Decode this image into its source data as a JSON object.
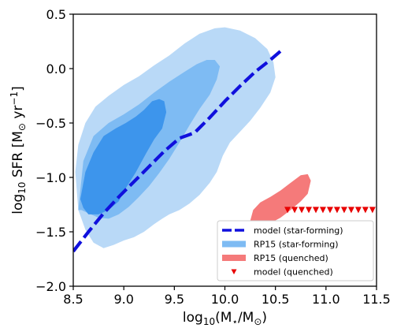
{
  "chart_data": {
    "type": "line",
    "xlabel": "log$_{10}$(M$_\\star$/M$_\\odot$)",
    "ylabel": "log$_{10}$ SFR [M$_\\odot$ yr$^{-1}$]",
    "xlim": [
      8.5,
      11.5
    ],
    "ylim": [
      -2.0,
      0.5
    ],
    "x_ticks": [
      "8.5",
      "9.0",
      "9.5",
      "10.0",
      "10.5",
      "11.0",
      "11.5"
    ],
    "y_ticks": [
      "0.5",
      "0.0",
      "−0.5",
      "−1.0",
      "−1.5",
      "−2.0"
    ],
    "grid": false,
    "legend_position": "lower-right",
    "colors": {
      "model_star_forming": "#1010dd",
      "rp15_outer": "#b9d9f7",
      "rp15_middle": "#7ebbf3",
      "rp15_inner": "#3d95ec",
      "rp15_quenched": "#f57a7a",
      "model_quenched": "#e80000"
    },
    "series": [
      {
        "name": "model (star-forming)",
        "style": "dashed-line",
        "x": [
          8.5,
          8.65,
          8.8,
          8.95,
          9.1,
          9.25,
          9.4,
          9.55,
          9.7,
          9.85,
          10.0,
          10.15,
          10.3,
          10.45,
          10.55
        ],
        "y": [
          -1.68,
          -1.5,
          -1.33,
          -1.18,
          -1.04,
          -0.9,
          -0.76,
          -0.64,
          -0.59,
          -0.45,
          -0.3,
          -0.16,
          -0.03,
          0.08,
          0.16
        ]
      },
      {
        "name": "RP15 (star-forming)",
        "style": "filled-contours",
        "levels": [
          {
            "level": "outer",
            "x": [
              8.52,
              8.55,
              8.62,
              8.72,
              8.85,
              9.0,
              9.15,
              9.3,
              9.45,
              9.6,
              9.75,
              9.9,
              10.0,
              10.15,
              10.3,
              10.42,
              10.48,
              10.5,
              10.45,
              10.35,
              10.25,
              10.15,
              10.05,
              9.98,
              9.92,
              9.85,
              9.75,
              9.65,
              9.55,
              9.45,
              9.38,
              9.3,
              9.2,
              9.1,
              9.0,
              8.9,
              8.8,
              8.7,
              8.62,
              8.55,
              8.52
            ],
            "y": [
              -0.95,
              -0.7,
              -0.5,
              -0.35,
              -0.25,
              -0.15,
              -0.07,
              0.03,
              0.12,
              0.23,
              0.32,
              0.37,
              0.38,
              0.35,
              0.28,
              0.18,
              0.06,
              -0.08,
              -0.22,
              -0.36,
              -0.48,
              -0.58,
              -0.68,
              -0.8,
              -0.95,
              -1.05,
              -1.16,
              -1.24,
              -1.3,
              -1.34,
              -1.38,
              -1.43,
              -1.5,
              -1.55,
              -1.58,
              -1.62,
              -1.65,
              -1.6,
              -1.48,
              -1.3,
              -0.95
            ]
          },
          {
            "level": "middle",
            "x": [
              8.55,
              8.6,
              8.7,
              8.85,
              9.0,
              9.15,
              9.3,
              9.45,
              9.6,
              9.72,
              9.82,
              9.9,
              9.95,
              9.92,
              9.85,
              9.75,
              9.65,
              9.55,
              9.45,
              9.35,
              9.25,
              9.15,
              9.05,
              8.95,
              8.85,
              8.75,
              8.65,
              8.58,
              8.55
            ],
            "y": [
              -1.3,
              -0.85,
              -0.62,
              -0.5,
              -0.42,
              -0.33,
              -0.22,
              -0.12,
              -0.03,
              0.04,
              0.08,
              0.08,
              0.02,
              -0.1,
              -0.24,
              -0.37,
              -0.52,
              -0.68,
              -0.83,
              -0.96,
              -1.08,
              -1.18,
              -1.27,
              -1.34,
              -1.38,
              -1.37,
              -1.33,
              -1.3,
              -1.3
            ]
          },
          {
            "level": "inner",
            "x": [
              8.57,
              8.62,
              8.7,
              8.8,
              8.92,
              9.02,
              9.12,
              9.2,
              9.28,
              9.35,
              9.4,
              9.42,
              9.38,
              9.3,
              9.22,
              9.12,
              9.02,
              8.95,
              8.85,
              8.75,
              8.65,
              8.6,
              8.57
            ],
            "y": [
              -1.2,
              -0.95,
              -0.77,
              -0.62,
              -0.55,
              -0.5,
              -0.44,
              -0.38,
              -0.3,
              -0.28,
              -0.3,
              -0.4,
              -0.55,
              -0.65,
              -0.78,
              -0.95,
              -1.1,
              -1.22,
              -1.3,
              -1.34,
              -1.34,
              -1.28,
              -1.2
            ]
          }
        ]
      },
      {
        "name": "RP15 (quenched)",
        "style": "filled-region",
        "x": [
          10.25,
          10.28,
          10.35,
          10.45,
          10.55,
          10.65,
          10.75,
          10.82,
          10.85,
          10.82,
          10.75,
          10.65,
          10.55,
          10.45,
          10.38,
          10.3,
          10.25
        ],
        "y": [
          -1.4,
          -1.3,
          -1.23,
          -1.18,
          -1.12,
          -1.05,
          -0.98,
          -0.97,
          -1.03,
          -1.15,
          -1.22,
          -1.3,
          -1.37,
          -1.42,
          -1.45,
          -1.45,
          -1.4
        ]
      },
      {
        "name": "model (quenched)",
        "style": "triangle-markers",
        "x": [
          10.62,
          10.69,
          10.76,
          10.83,
          10.9,
          10.97,
          11.04,
          11.11,
          11.18,
          11.25,
          11.32,
          11.39,
          11.46
        ],
        "y": [
          -1.3,
          -1.3,
          -1.3,
          -1.3,
          -1.3,
          -1.3,
          -1.3,
          -1.3,
          -1.3,
          -1.3,
          -1.3,
          -1.3,
          -1.3
        ]
      }
    ]
  }
}
